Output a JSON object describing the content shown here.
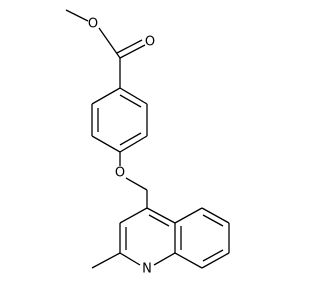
{
  "nodes": [
    {
      "label": "O"
    },
    {
      "label": "O"
    },
    {
      "label": "O"
    },
    {
      "label": "N"
    }
  ]
}
